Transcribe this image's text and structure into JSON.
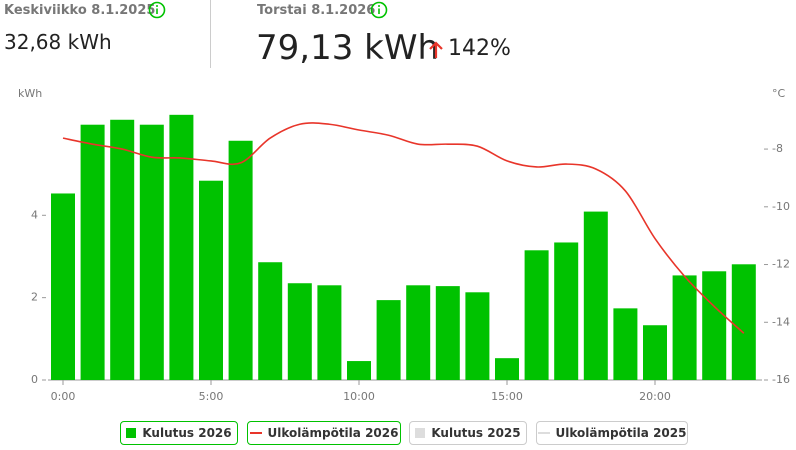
{
  "header": {
    "left": {
      "date": "Keskiviikko 8.1.2025",
      "total": "32,68 kWh"
    },
    "right": {
      "date": "Torstai 8.1.2026",
      "total": "79,13 kWh",
      "change": "142%"
    }
  },
  "chart_data": {
    "type": "bar",
    "ylabel": "kWh",
    "y2label": "°C",
    "categories": [
      "0:00",
      null,
      null,
      null,
      null,
      "5:00",
      null,
      null,
      null,
      null,
      "10:00",
      null,
      null,
      null,
      null,
      "15:00",
      null,
      null,
      null,
      null,
      "20:00",
      null,
      null,
      null
    ],
    "series": [
      {
        "name": "Kulutus 2026",
        "color": "#00c200",
        "type": "bar",
        "values": [
          4.53,
          6.2,
          6.32,
          6.2,
          6.44,
          4.84,
          5.81,
          2.86,
          2.35,
          2.3,
          0.46,
          1.94,
          2.3,
          2.28,
          2.13,
          0.53,
          3.15,
          3.34,
          4.09,
          1.74,
          1.33,
          2.54,
          2.64,
          2.81
        ]
      },
      {
        "name": "Ulkolämpötila 2026",
        "color": "#e8352a",
        "type": "line",
        "axis": "y2",
        "values": [
          -7.62,
          -7.83,
          -8.0,
          -8.28,
          -8.31,
          -8.41,
          -8.48,
          -7.62,
          -7.14,
          -7.14,
          -7.34,
          -7.52,
          -7.83,
          -7.83,
          -7.9,
          -8.41,
          -8.62,
          -8.52,
          -8.69,
          -9.45,
          -11.1,
          -12.41,
          -13.45,
          -14.38
        ]
      },
      {
        "name": "Kulutus 2025",
        "color": "#dddddd",
        "type": "bar",
        "visible": false
      },
      {
        "name": "Ulkolämpötila 2025",
        "color": "#dddddd",
        "type": "line",
        "visible": false
      }
    ],
    "ylim": [
      0,
      6.8
    ],
    "yticks": [
      0,
      2,
      4
    ],
    "y2lim": [
      -16,
      -6.3
    ],
    "y2ticks": [
      -16,
      -14,
      -12,
      -10,
      -8
    ],
    "grid": false
  }
}
